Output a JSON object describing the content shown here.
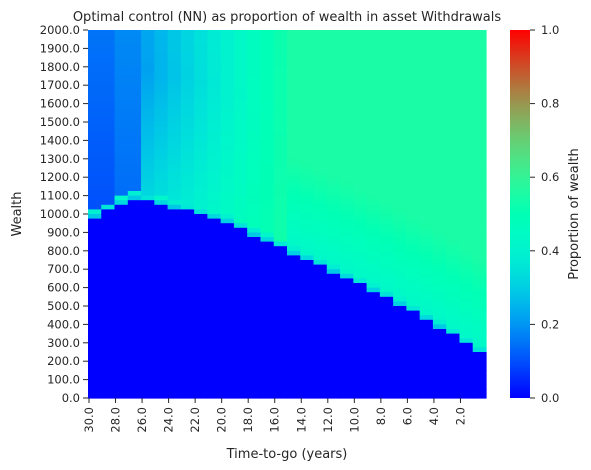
{
  "chart_data": {
    "type": "heatmap",
    "title": "Optimal control (NN) as proportion of wealth in asset Withdrawals",
    "xlabel": "Time-to-go (years)",
    "ylabel": "Wealth",
    "x_tick_labels": [
      "30.0",
      "28.0",
      "26.0",
      "24.0",
      "22.0",
      "20.0",
      "18.0",
      "16.0",
      "14.0",
      "12.0",
      "10.0",
      "8.0",
      "6.0",
      "4.0",
      "2.0"
    ],
    "y_tick_labels": [
      "2000.0",
      "1900.0",
      "1800.0",
      "1700.0",
      "1600.0",
      "1500.0",
      "1400.0",
      "1300.0",
      "1200.0",
      "1100.0",
      "1000.0",
      "900.0",
      "800.0",
      "700.0",
      "600.0",
      "500.0",
      "400.0",
      "300.0",
      "200.0",
      "100.0",
      "0.0"
    ],
    "x_range": [
      30,
      1
    ],
    "y_range": [
      0,
      2000
    ],
    "colorbar": {
      "label": "Proportion of wealth",
      "min": 0.0,
      "max": 1.0,
      "ticks": [
        "0.0",
        "0.2",
        "0.4",
        "0.6",
        "0.8",
        "1.0"
      ],
      "colormap": "rainbow"
    },
    "description_values": {
      "upper_plateau_value": 0.55,
      "low_wealth_value": 0.0,
      "boundary_wealth_by_time_to_go": [
        {
          "t": 30,
          "w": 1000
        },
        {
          "t": 27,
          "w": 1100
        },
        {
          "t": 24,
          "w": 1050
        },
        {
          "t": 20,
          "w": 970
        },
        {
          "t": 16,
          "w": 830
        },
        {
          "t": 12,
          "w": 700
        },
        {
          "t": 8,
          "w": 560
        },
        {
          "t": 4,
          "w": 400
        },
        {
          "t": 1,
          "w": 260
        }
      ]
    }
  }
}
